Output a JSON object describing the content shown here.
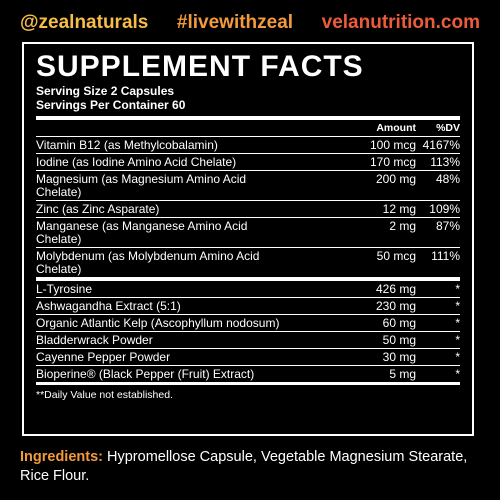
{
  "header": {
    "handles": [
      "@zealnaturals",
      "#livewithzeal",
      "velanutrition.com"
    ]
  },
  "panel": {
    "title": "SUPPLEMENT FACTS",
    "serving_size": "Serving Size 2 Capsules",
    "servings_per_container": "Servings Per Container 60",
    "columns": [
      "Amount",
      "%DV"
    ],
    "vitamins_minerals": [
      {
        "name": "Vitamin B12 (as Methylcobalamin)",
        "amount": "100 mcg",
        "dv": "4167%"
      },
      {
        "name": "Iodine (as Iodine Amino Acid Chelate)",
        "amount": "170 mcg",
        "dv": "113%"
      },
      {
        "name": "Magnesium (as Magnesium Amino Acid Chelate)",
        "amount": "200 mg",
        "dv": "48%"
      },
      {
        "name": "Zinc (as Zinc Asparate)",
        "amount": "12 mg",
        "dv": "109%"
      },
      {
        "name": "Manganese (as Manganese Amino Acid Chelate)",
        "amount": "2 mg",
        "dv": "87%"
      },
      {
        "name": "Molybdenum (as Molybdenum Amino Acid Chelate)",
        "amount": "50 mcg",
        "dv": "111%"
      }
    ],
    "other": [
      {
        "name": "L-Tyrosine",
        "amount": "426 mg",
        "dv": "*"
      },
      {
        "name": "Ashwagandha Extract (5:1)",
        "amount": "230 mg",
        "dv": "*"
      },
      {
        "name": "Organic Atlantic Kelp (Ascophyllum nodosum)",
        "amount": "60 mg",
        "dv": "*"
      },
      {
        "name": "Bladderwrack Powder",
        "amount": "50 mg",
        "dv": "*"
      },
      {
        "name": "Cayenne Pepper Powder",
        "amount": "30 mg",
        "dv": "*"
      },
      {
        "name": "Bioperine® (Black Pepper (Fruit) Extract)",
        "amount": "5 mg",
        "dv": "*"
      }
    ],
    "footnote": "**Daily Value not established."
  },
  "ingredients": {
    "label": "Ingredients:",
    "text": "Hypromellose Capsule, Vegetable Magnesium Stearate, Rice Flour."
  }
}
